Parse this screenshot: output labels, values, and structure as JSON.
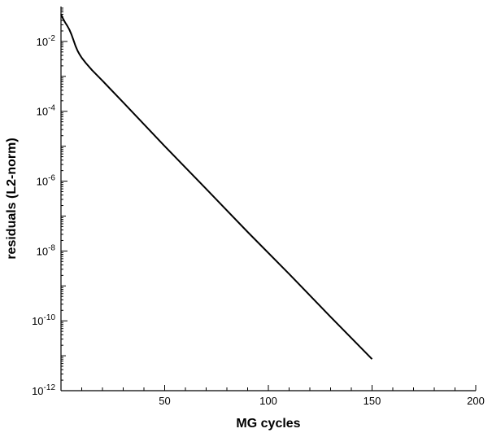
{
  "chart_data": {
    "type": "line",
    "title": "",
    "xlabel": "MG cycles",
    "ylabel": "residuals (L2-norm)",
    "x_scale": "linear",
    "y_scale": "log",
    "xlim": [
      0,
      200
    ],
    "ylim": [
      1e-12,
      0.1
    ],
    "x_ticks": [
      50,
      100,
      150,
      200
    ],
    "y_ticks": [
      {
        "exp": "-2",
        "value": 0.01
      },
      {
        "exp": "-4",
        "value": 0.0001
      },
      {
        "exp": "-6",
        "value": 1e-06
      },
      {
        "exp": "-8",
        "value": 1e-08
      },
      {
        "exp": "-10",
        "value": 1e-10
      },
      {
        "exp": "-12",
        "value": 1e-12
      }
    ],
    "grid": false,
    "series": [
      {
        "color": "#000000",
        "x": [
          0,
          1,
          2,
          3,
          4,
          5,
          6,
          7,
          8,
          9,
          10,
          12,
          15,
          20,
          30,
          50,
          70,
          90,
          110,
          130,
          150
        ],
        "y": [
          0.06,
          0.045,
          0.035,
          0.028,
          0.022,
          0.016,
          0.011,
          0.0075,
          0.0054,
          0.0042,
          0.0034,
          0.0024,
          0.0015,
          0.00075,
          0.00018,
          1e-05,
          6e-07,
          3.5e-08,
          2.2e-09,
          1.3e-10,
          8e-12
        ]
      }
    ]
  }
}
